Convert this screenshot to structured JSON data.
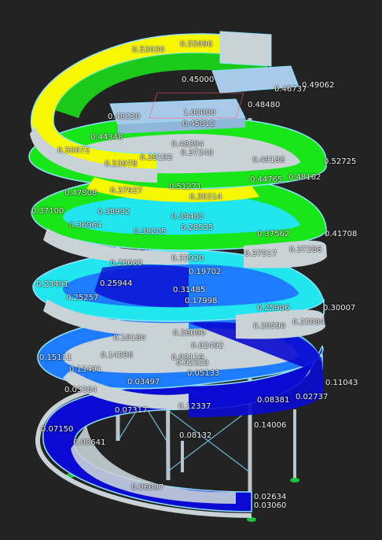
{
  "colors": {
    "background": "#232323",
    "max": "#f7f700",
    "high": "#19e619",
    "mid": "#22e6ef",
    "low_mid": "#1e7dff",
    "low": "#0a0ad2",
    "frame": "#c8d2d7",
    "edge": "#8fe3ff",
    "deck": "#a8c9e8"
  },
  "labels": [
    "0.55996",
    "0.53030",
    "0.49062",
    "0.46737",
    "0.45000",
    "0.48480",
    "0.48330",
    "1.00000",
    "0.45812",
    "0.48304",
    "0.44348",
    "0.50672",
    "0.53978",
    "0.38193",
    "0.37240",
    "0.49188",
    "0.52725",
    "0.48162",
    "0.44765",
    "0.47808",
    "0.51271",
    "0.37927",
    "0.30314",
    "0.37100",
    "0.38992",
    "0.39463",
    "0.28535",
    "0.36964",
    "0.38205",
    "0.37562",
    "0.41708",
    "0.37517",
    "0.37286",
    "0.28660",
    "0.33920",
    "0.19702",
    "0.23491",
    "0.25944",
    "0.25257",
    "0.31485",
    "0.17998",
    "0.25906",
    "0.30007",
    "0.20590",
    "0.25084",
    "0.18180",
    "0.28080",
    "0.02492",
    "0.14296",
    "0.03119",
    "0.02329",
    "0.05133",
    "0.15111",
    "0.13491",
    "0.03497",
    "0.11043",
    "0.03364",
    "0.08381",
    "0.02737",
    "0.12337",
    "0.07317",
    "0.14006",
    "0.08132",
    "0.07150",
    "0.00641",
    "0.06087",
    "0.02634",
    "0.03060"
  ]
}
